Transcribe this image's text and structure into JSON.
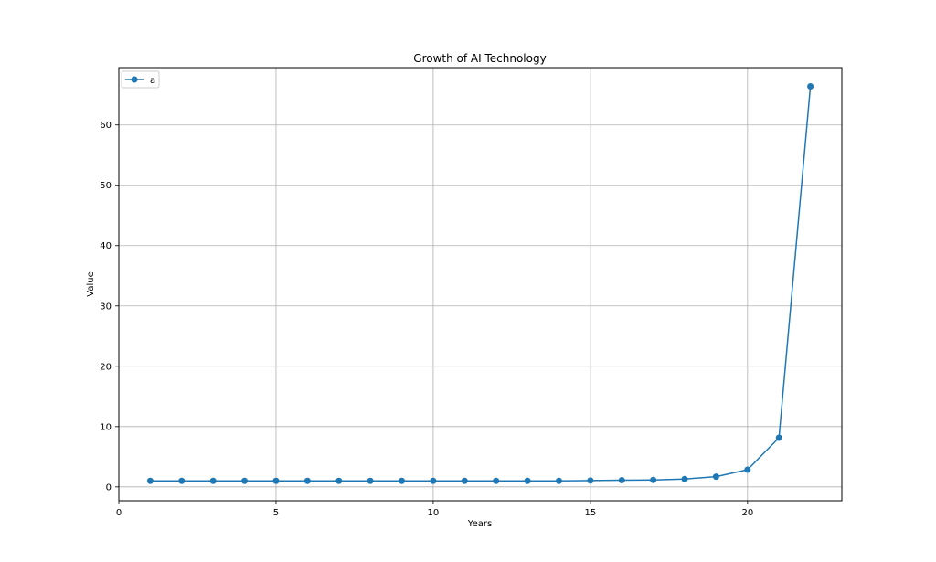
{
  "chart_data": {
    "type": "line",
    "title": "Growth of AI Technology",
    "xlabel": "Years",
    "ylabel": "Value",
    "xlim": [
      0,
      23
    ],
    "ylim": [
      -2.3,
      69.5
    ],
    "xticks": [
      0,
      5,
      10,
      15,
      20
    ],
    "yticks": [
      0,
      10,
      20,
      30,
      40,
      50,
      60
    ],
    "grid": true,
    "legend_position": "top-left",
    "series": [
      {
        "name": "a",
        "color": "#1f77b4",
        "marker": "circle",
        "x": [
          1,
          2,
          3,
          4,
          5,
          6,
          7,
          8,
          9,
          10,
          11,
          12,
          13,
          14,
          15,
          16,
          17,
          18,
          19,
          20,
          21,
          22
        ],
        "y": [
          1,
          1,
          1,
          1,
          1,
          1,
          1,
          1,
          1,
          1,
          1,
          1,
          1,
          1,
          1.05,
          1.1,
          1.15,
          1.3,
          1.7,
          2.85,
          8.15,
          66.4
        ]
      }
    ]
  }
}
